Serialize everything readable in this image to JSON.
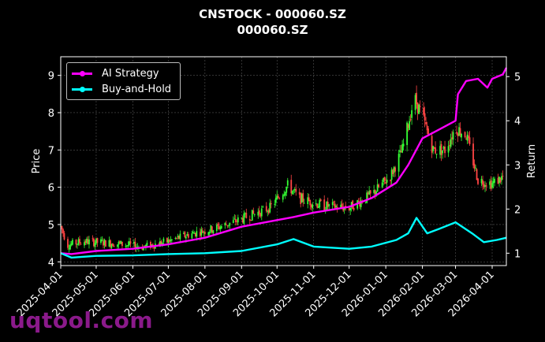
{
  "chart_data": {
    "type": "candlestick+line",
    "title": "CNSTOCK - 000060.SZ",
    "subtitle": "000060.SZ",
    "ylabel_left": "Price",
    "ylabel_right": "Return",
    "ylim_left": [
      3.9,
      9.5
    ],
    "ylim_right": [
      0.72,
      5.45
    ],
    "xlim": [
      "2025-04-01",
      "2026-04-13"
    ],
    "x_ticks": [
      "2025-04-01",
      "2025-05-01",
      "2025-06-01",
      "2025-07-01",
      "2025-08-01",
      "2025-09-01",
      "2025-10-01",
      "2025-11-01",
      "2025-12-01",
      "2026-01-01",
      "2026-02-01",
      "2026-03-01",
      "2026-04-01"
    ],
    "y_ticks_left": [
      4,
      5,
      6,
      7,
      8,
      9
    ],
    "y_ticks_right": [
      1,
      2,
      3,
      4,
      5
    ],
    "grid": true,
    "legend_position": "top-left",
    "colors": {
      "up": "#33ff33",
      "down": "#ff4444",
      "ai": "#ff00ff",
      "bh": "#00ffff",
      "grid": "#555555"
    },
    "price_keypoints": [
      [
        "2025-04-01",
        4.95
      ],
      [
        "2025-04-07",
        4.45
      ],
      [
        "2025-04-20",
        4.55
      ],
      [
        "2025-05-15",
        4.5
      ],
      [
        "2025-06-10",
        4.4
      ],
      [
        "2025-07-01",
        4.55
      ],
      [
        "2025-07-20",
        4.75
      ],
      [
        "2025-08-10",
        4.9
      ],
      [
        "2025-09-01",
        5.15
      ],
      [
        "2025-09-25",
        5.45
      ],
      [
        "2025-10-10",
        6.05
      ],
      [
        "2025-10-20",
        5.7
      ],
      [
        "2025-11-10",
        5.5
      ],
      [
        "2025-12-01",
        5.45
      ],
      [
        "2025-12-20",
        5.8
      ],
      [
        "2026-01-05",
        6.3
      ],
      [
        "2026-01-15",
        7.0
      ],
      [
        "2026-01-25",
        8.4
      ],
      [
        "2026-02-01",
        7.9
      ],
      [
        "2026-02-10",
        7.0
      ],
      [
        "2026-02-20",
        7.0
      ],
      [
        "2026-03-01",
        7.6
      ],
      [
        "2026-03-10",
        7.4
      ],
      [
        "2026-03-20",
        6.2
      ],
      [
        "2026-04-01",
        6.1
      ],
      [
        "2026-04-12",
        6.3
      ]
    ],
    "series": [
      {
        "name": "AI Strategy",
        "x": [
          "2025-04-01",
          "2025-04-10",
          "2025-05-01",
          "2025-06-01",
          "2025-07-01",
          "2025-08-01",
          "2025-09-01",
          "2025-10-01",
          "2025-10-15",
          "2025-11-01",
          "2025-12-01",
          "2025-12-20",
          "2026-01-10",
          "2026-01-20",
          "2026-02-01",
          "2026-02-15",
          "2026-03-01",
          "2026-03-03",
          "2026-03-10",
          "2026-03-20",
          "2026-03-28",
          "2026-04-01",
          "2026-04-10",
          "2026-04-13"
        ],
        "values": [
          1.0,
          0.98,
          1.05,
          1.1,
          1.2,
          1.35,
          1.6,
          1.75,
          1.82,
          1.92,
          2.05,
          2.25,
          2.6,
          3.0,
          3.6,
          3.8,
          4.0,
          4.6,
          4.9,
          4.95,
          4.75,
          4.95,
          5.05,
          5.2
        ]
      },
      {
        "name": "Buy-and-Hold",
        "x": [
          "2025-04-01",
          "2025-04-10",
          "2025-05-01",
          "2025-06-01",
          "2025-07-01",
          "2025-08-01",
          "2025-09-01",
          "2025-10-01",
          "2025-10-15",
          "2025-11-01",
          "2025-12-01",
          "2025-12-20",
          "2026-01-10",
          "2026-01-20",
          "2026-01-27",
          "2026-02-05",
          "2026-02-15",
          "2026-03-01",
          "2026-03-15",
          "2026-03-25",
          "2026-04-05",
          "2026-04-13"
        ],
        "values": [
          1.0,
          0.9,
          0.94,
          0.95,
          0.98,
          1.0,
          1.05,
          1.2,
          1.32,
          1.15,
          1.1,
          1.15,
          1.3,
          1.45,
          1.8,
          1.45,
          1.55,
          1.7,
          1.45,
          1.25,
          1.3,
          1.35
        ]
      }
    ]
  },
  "legend": {
    "ai_label": "AI Strategy",
    "bh_label": "Buy-and-Hold"
  },
  "watermark": "uqtool.com"
}
